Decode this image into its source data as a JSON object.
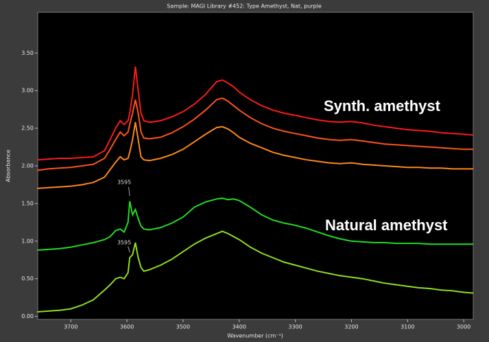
{
  "chart_data": {
    "type": "line",
    "title": "Sample: MAGI Library #452: Type Amethyst, Nat, purple",
    "x_label": "Wavenumber (cm⁻¹)",
    "y_label": "Absorbance",
    "xlim": [
      3759,
      2983
    ],
    "ylim": [
      -0.04,
      4.04
    ],
    "xticks": [
      3700,
      3600,
      3500,
      3400,
      3300,
      3200,
      3100,
      3000
    ],
    "yticks": [
      {
        "value": 0,
        "label": "0.00"
      },
      {
        "value": 0.5,
        "label": "0.50"
      },
      {
        "value": 1,
        "label": "1.00"
      },
      {
        "value": 1.5,
        "label": "1.50"
      },
      {
        "value": 2,
        "label": "2.00"
      },
      {
        "value": 2.5,
        "label": "2.50"
      },
      {
        "value": 3,
        "label": "3.00"
      },
      {
        "value": 3.5,
        "label": "3.50"
      }
    ],
    "grid": false,
    "x": [
      3760,
      3740,
      3720,
      3700,
      3680,
      3660,
      3640,
      3630,
      3620,
      3612,
      3605,
      3598,
      3595,
      3590,
      3585,
      3580,
      3575,
      3570,
      3560,
      3540,
      3520,
      3500,
      3480,
      3460,
      3440,
      3430,
      3420,
      3410,
      3400,
      3380,
      3360,
      3340,
      3320,
      3300,
      3280,
      3260,
      3240,
      3220,
      3200,
      3180,
      3160,
      3140,
      3120,
      3100,
      3080,
      3060,
      3040,
      3020,
      3000,
      2983
    ],
    "series": [
      {
        "color": "#ff1a1a",
        "values": [
          2.08,
          2.09,
          2.1,
          2.1,
          2.11,
          2.12,
          2.2,
          2.35,
          2.5,
          2.6,
          2.55,
          2.6,
          2.7,
          2.95,
          3.32,
          3.0,
          2.7,
          2.6,
          2.58,
          2.6,
          2.65,
          2.72,
          2.82,
          2.95,
          3.12,
          3.14,
          3.1,
          3.05,
          2.98,
          2.88,
          2.8,
          2.74,
          2.7,
          2.67,
          2.64,
          2.61,
          2.59,
          2.58,
          2.59,
          2.57,
          2.54,
          2.52,
          2.5,
          2.48,
          2.47,
          2.46,
          2.44,
          2.43,
          2.42,
          2.41
        ]
      },
      {
        "color": "#ff5519",
        "values": [
          1.94,
          1.96,
          1.97,
          1.98,
          2.0,
          2.02,
          2.1,
          2.22,
          2.35,
          2.45,
          2.4,
          2.45,
          2.55,
          2.7,
          2.88,
          2.7,
          2.45,
          2.37,
          2.36,
          2.38,
          2.44,
          2.52,
          2.62,
          2.74,
          2.88,
          2.9,
          2.86,
          2.8,
          2.74,
          2.64,
          2.56,
          2.5,
          2.46,
          2.43,
          2.4,
          2.37,
          2.35,
          2.34,
          2.35,
          2.33,
          2.31,
          2.29,
          2.28,
          2.27,
          2.26,
          2.25,
          2.24,
          2.23,
          2.22,
          2.22
        ]
      },
      {
        "color": "#ff8a1a",
        "values": [
          1.7,
          1.71,
          1.72,
          1.73,
          1.75,
          1.78,
          1.85,
          1.95,
          2.05,
          2.12,
          2.08,
          2.1,
          2.18,
          2.35,
          2.58,
          2.35,
          2.12,
          2.08,
          2.07,
          2.1,
          2.15,
          2.22,
          2.32,
          2.42,
          2.51,
          2.52,
          2.49,
          2.44,
          2.38,
          2.3,
          2.24,
          2.18,
          2.14,
          2.11,
          2.08,
          2.06,
          2.04,
          2.03,
          2.04,
          2.02,
          2.01,
          2.0,
          1.99,
          1.98,
          1.98,
          1.97,
          1.97,
          1.96,
          1.96,
          1.96
        ]
      },
      {
        "color": "#22dd22",
        "values": [
          0.88,
          0.89,
          0.9,
          0.92,
          0.95,
          0.98,
          1.02,
          1.06,
          1.14,
          1.16,
          1.12,
          1.25,
          1.53,
          1.35,
          1.42,
          1.3,
          1.2,
          1.16,
          1.15,
          1.18,
          1.24,
          1.32,
          1.45,
          1.52,
          1.56,
          1.57,
          1.55,
          1.56,
          1.54,
          1.45,
          1.35,
          1.28,
          1.24,
          1.21,
          1.17,
          1.12,
          1.07,
          1.03,
          1.0,
          0.99,
          0.98,
          0.98,
          0.97,
          0.97,
          0.97,
          0.96,
          0.96,
          0.96,
          0.96,
          0.96
        ]
      },
      {
        "color": "#8fe022",
        "values": [
          0.06,
          0.07,
          0.08,
          0.1,
          0.15,
          0.22,
          0.35,
          0.42,
          0.5,
          0.52,
          0.5,
          0.58,
          0.78,
          0.82,
          0.98,
          0.78,
          0.65,
          0.6,
          0.62,
          0.68,
          0.76,
          0.86,
          0.96,
          1.04,
          1.1,
          1.13,
          1.1,
          1.06,
          1.02,
          0.92,
          0.84,
          0.78,
          0.72,
          0.68,
          0.64,
          0.6,
          0.57,
          0.54,
          0.52,
          0.5,
          0.47,
          0.44,
          0.42,
          0.4,
          0.38,
          0.37,
          0.35,
          0.34,
          0.32,
          0.31
        ]
      }
    ],
    "annotations": [
      {
        "text": "3595"
      },
      {
        "text": "3595"
      },
      {
        "text": "Synth. amethyst"
      },
      {
        "text": "Natural amethyst"
      }
    ]
  }
}
